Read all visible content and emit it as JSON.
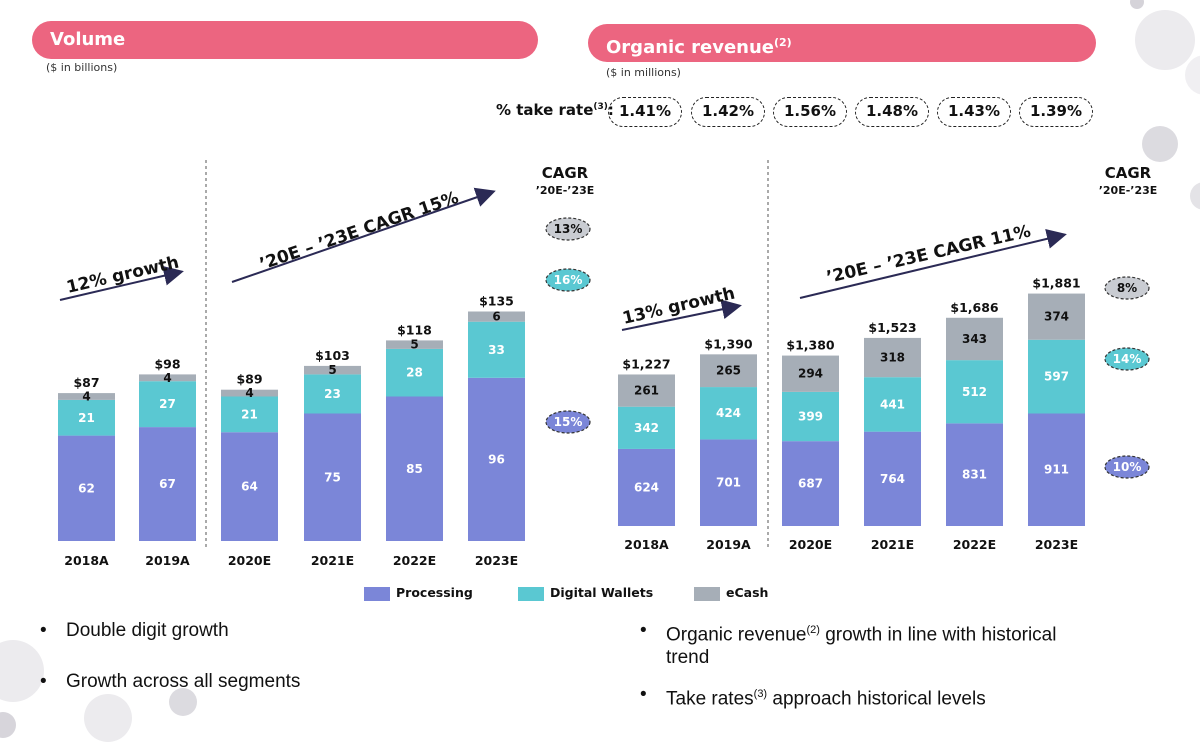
{
  "colors": {
    "processing": "#7b86d8",
    "digital_wallets": "#5ac8d2",
    "ecash": "#a6aeb7",
    "banner": "#ec6580"
  },
  "volume": {
    "banner": "Volume",
    "unit": "($ in billions)"
  },
  "revenue": {
    "banner": "Organic revenue",
    "banner_sup": "(2)",
    "unit": "($ in millions)",
    "take_rate_label": "% take rate",
    "take_rate_sup": "(3)",
    "take_rate_colon": ":",
    "take_rates": [
      "1.41%",
      "1.42%",
      "1.56%",
      "1.48%",
      "1.43%",
      "1.39%"
    ]
  },
  "legend": [
    "Processing",
    "Digital Wallets",
    "eCash"
  ],
  "bullets_left": [
    "Double digit growth",
    "Growth across all segments"
  ],
  "bullets_right": {
    "b1_before": "Organic revenue",
    "b1_sup": "(2)",
    "b1_after": " growth in line with historical",
    "b1_line2": "trend",
    "b2_before": "Take rates",
    "b2_sup": "(3)",
    "b2_after": " approach historical levels"
  },
  "chart_data": [
    {
      "type": "bar",
      "stacked": true,
      "title": "Volume",
      "categories": [
        "2018A",
        "2019A",
        "2020E",
        "2021E",
        "2022E",
        "2023E"
      ],
      "series": [
        {
          "name": "Processing",
          "values": [
            62,
            67,
            64,
            75,
            85,
            96
          ]
        },
        {
          "name": "Digital Wallets",
          "values": [
            21,
            27,
            21,
            23,
            28,
            33
          ]
        },
        {
          "name": "eCash",
          "values": [
            4,
            4,
            4,
            5,
            5,
            6
          ]
        }
      ],
      "totals": [
        "$87",
        "$98",
        "$89",
        "$103",
        "$118",
        "$135"
      ],
      "growth_label": "12% growth",
      "cagr_arrow_label": "’20E – ’23E CAGR 15%",
      "cagr_header": "CAGR",
      "cagr_sub": "’20E-’23E",
      "cagr": {
        "eCash": "13%",
        "Digital Wallets": "16%",
        "Processing": "15%"
      }
    },
    {
      "type": "bar",
      "stacked": true,
      "title": "Organic revenue",
      "categories": [
        "2018A",
        "2019A",
        "2020E",
        "2021E",
        "2022E",
        "2023E"
      ],
      "series": [
        {
          "name": "Processing",
          "values": [
            624,
            701,
            687,
            764,
            831,
            911
          ]
        },
        {
          "name": "Digital Wallets",
          "values": [
            342,
            424,
            399,
            441,
            512,
            597
          ]
        },
        {
          "name": "eCash",
          "values": [
            261,
            265,
            294,
            318,
            343,
            374
          ]
        }
      ],
      "totals": [
        "$1,227",
        "$1,390",
        "$1,380",
        "$1,523",
        "$1,686",
        "$1,881"
      ],
      "growth_label": "13% growth",
      "cagr_arrow_label": "’20E – ’23E CAGR 11%",
      "cagr_header": "CAGR",
      "cagr_sub": "’20E-’23E",
      "cagr": {
        "eCash": "8%",
        "Digital Wallets": "14%",
        "Processing": "10%"
      }
    }
  ]
}
